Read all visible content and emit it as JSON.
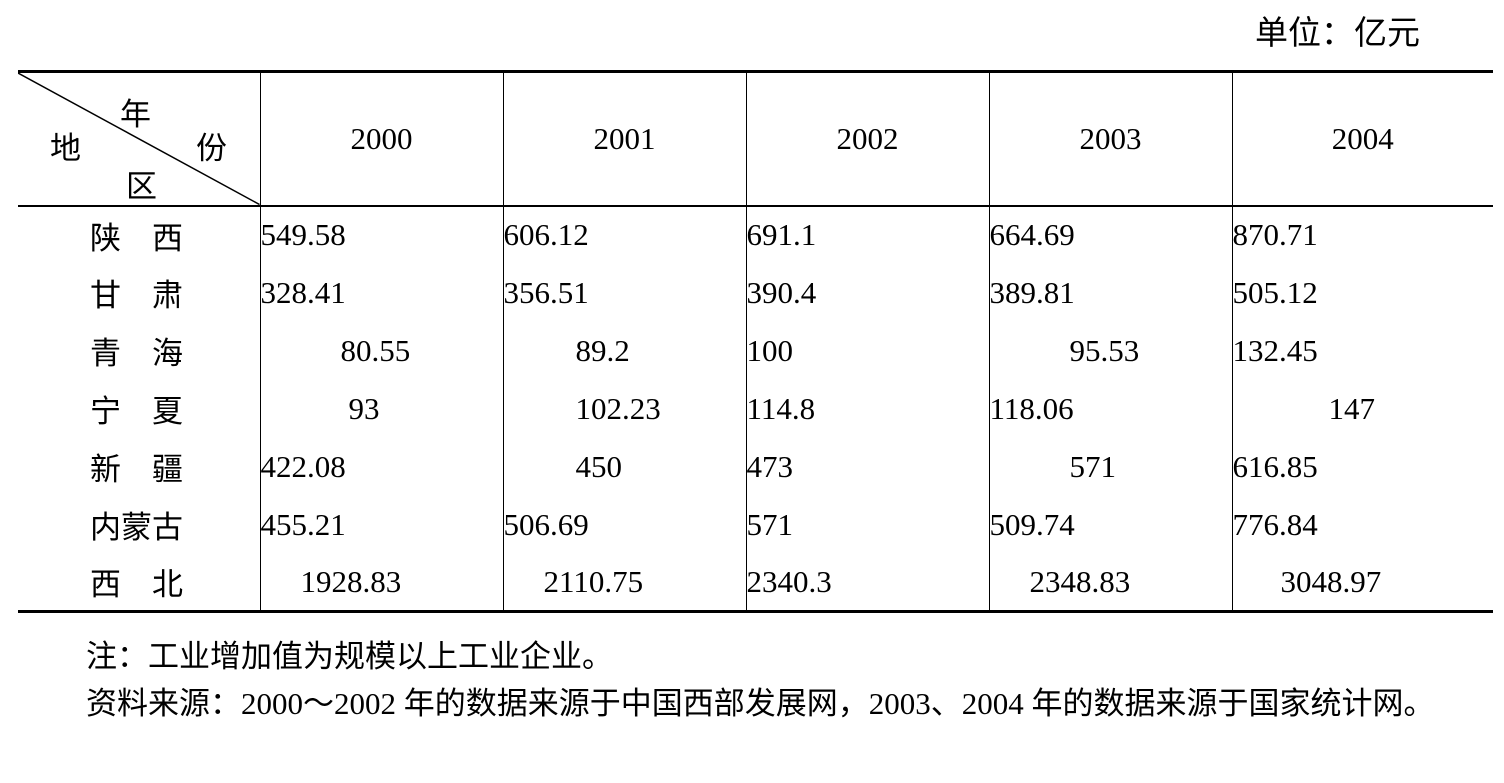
{
  "unit_label": "单位：亿元",
  "header": {
    "corner_year": "年",
    "corner_di": "地",
    "corner_fen": "份",
    "corner_qu": "区",
    "years": [
      "2000",
      "2001",
      "2002",
      "2003",
      "2004"
    ]
  },
  "rows": [
    {
      "region": "陕　西",
      "values": [
        "549.58",
        "606.12",
        "691.1",
        "664.69",
        "870.71"
      ]
    },
    {
      "region": "甘　肃",
      "values": [
        "328.41",
        "356.51",
        "390.4",
        "389.81",
        "505.12"
      ]
    },
    {
      "region": "青　海",
      "values": [
        "80.55",
        "89.2",
        "100",
        "95.53",
        "132.45"
      ]
    },
    {
      "region": "宁　夏",
      "values": [
        "93",
        "102.23",
        "114.8",
        "118.06",
        "147"
      ]
    },
    {
      "region": "新　疆",
      "values": [
        "422.08",
        "450",
        "473",
        "571",
        "616.85"
      ]
    },
    {
      "region": "内蒙古",
      "values": [
        "455.21",
        "506.69",
        "571",
        "509.74",
        "776.84"
      ]
    },
    {
      "region": "西　北",
      "values": [
        "1928.83",
        "2110.75",
        "2340.3",
        "2348.83",
        "3048.97"
      ]
    }
  ],
  "note": "注：工业增加值为规模以上工业企业。",
  "source": "资料来源：2000～2002 年的数据来源于中国西部发展网，2003、2004 年的数据来源于国家统计网。"
}
